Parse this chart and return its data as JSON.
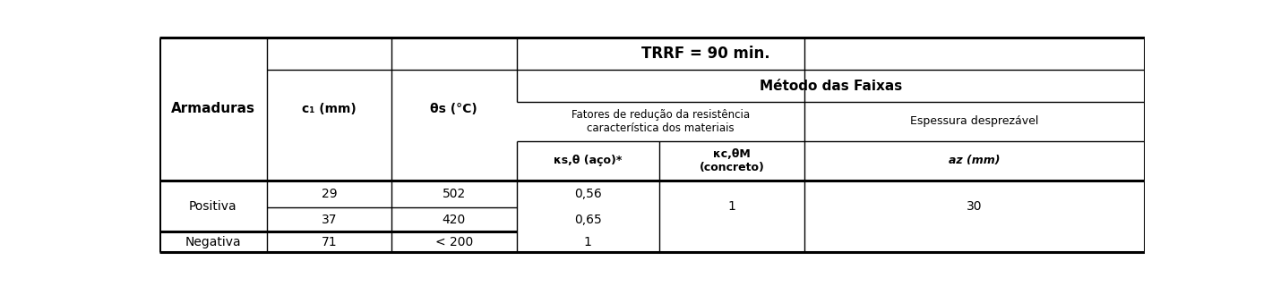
{
  "title": "TRRF = 90 min.",
  "col0_label": "Armaduras",
  "col1_label": "c₁ (mm)",
  "col2_label": "θs (°C)",
  "group_label": "Método das Faixas",
  "sub_group_label": "Fatores de redução da resistência\ncaracterística dos materiais",
  "espessura_label": "Espessura desprezável",
  "ks_label": "κs,θ (aço)*",
  "kc_label": "κc,θM\n(concreto)",
  "az_label": "az (mm)",
  "bg_color": "#ffffff",
  "lc": "#000000",
  "tc": "#000000",
  "rows": [
    [
      "Positiva",
      "29",
      "502",
      "0,56",
      "1",
      "30"
    ],
    [
      "",
      "37",
      "420",
      "0,65",
      "",
      ""
    ],
    [
      "Negativa",
      "71",
      "< 200",
      "1",
      "",
      ""
    ]
  ]
}
